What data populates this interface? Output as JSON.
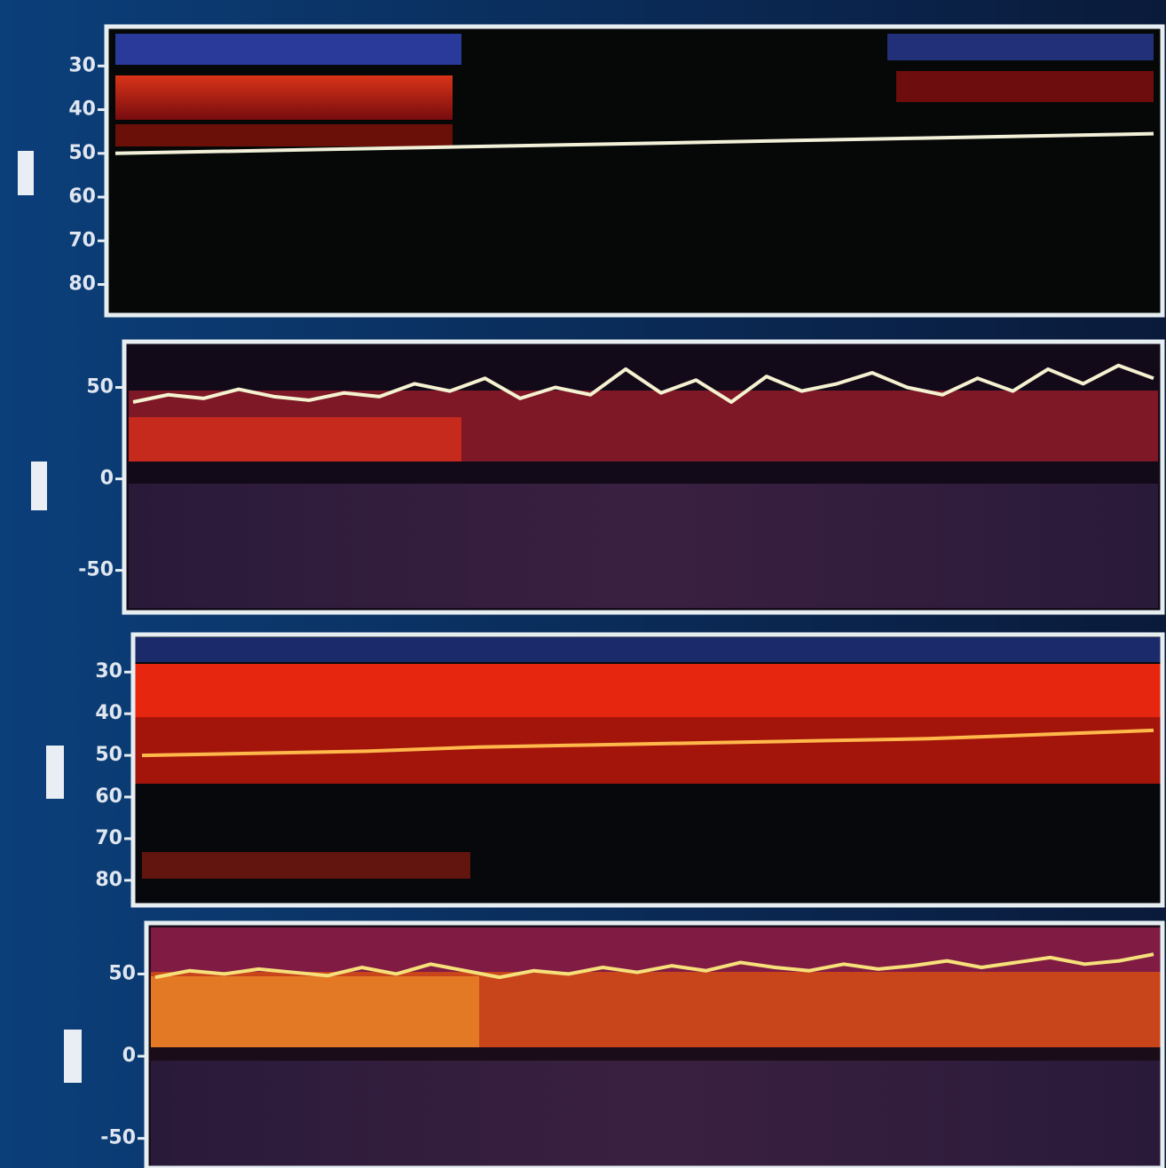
{
  "chart_data": [
    {
      "type": "line",
      "inverted": true,
      "ylim": [
        21,
        87
      ],
      "yticks": [
        30,
        40,
        50,
        60,
        70,
        80
      ],
      "series": [
        {
          "color": "#f2f0d8",
          "values": [
            50,
            49.5,
            49,
            48.5,
            48,
            47.5,
            47,
            46.5,
            46,
            45.5
          ]
        }
      ]
    },
    {
      "type": "line",
      "inverted": false,
      "ylim": [
        -73,
        75
      ],
      "yticks": [
        50,
        0,
        -50
      ],
      "series": [
        {
          "color": "#f4f2d0",
          "values": [
            42,
            46,
            44,
            49,
            45,
            43,
            47,
            45,
            52,
            48,
            55,
            44,
            50,
            46,
            60,
            47,
            54,
            42,
            56,
            48,
            52,
            58,
            50,
            46,
            55,
            48,
            60,
            52,
            62,
            55
          ]
        }
      ]
    },
    {
      "type": "line",
      "inverted": true,
      "ylim": [
        21,
        86
      ],
      "yticks": [
        30,
        40,
        50,
        60,
        70,
        80
      ],
      "series": [
        {
          "color": "#ffb84a",
          "values": [
            50,
            49.5,
            49,
            48,
            47.5,
            47,
            46.5,
            46,
            45,
            44
          ]
        }
      ]
    },
    {
      "type": "line",
      "inverted": false,
      "ylim": [
        -68,
        81
      ],
      "yticks": [
        50,
        0,
        -50
      ],
      "series": [
        {
          "color": "#f6e07a",
          "values": [
            48,
            52,
            50,
            53,
            51,
            49,
            54,
            50,
            56,
            52,
            48,
            52,
            50,
            54,
            51,
            55,
            52,
            57,
            54,
            52,
            56,
            53,
            55,
            58,
            54,
            57,
            60,
            56,
            58,
            62
          ]
        }
      ]
    }
  ]
}
